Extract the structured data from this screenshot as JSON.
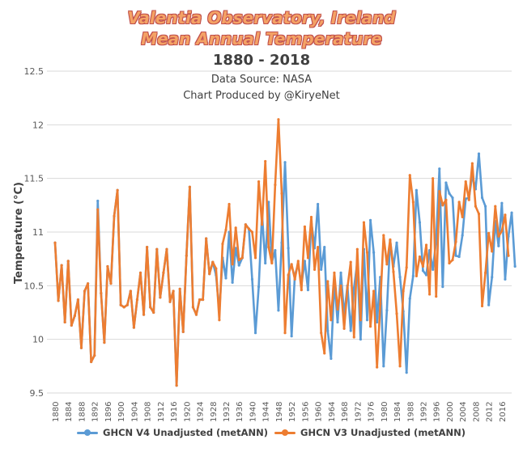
{
  "chart_data": {
    "type": "line",
    "title": [
      "Valentia Observatory, Ireland",
      "Mean Annual Temperature"
    ],
    "subtitle": "1880 - 2018",
    "source_lines": [
      "Data Source: NASA",
      "Chart Produced by @KiryeNet"
    ],
    "ylabel": "Temperature (°C)",
    "xlabel": "",
    "ylim": [
      9.5,
      12.5
    ],
    "yticks": [
      9.5,
      10,
      10.5,
      11,
      11.5,
      12,
      12.5
    ],
    "ytick_labels": [
      "9.5",
      "10",
      "10.5",
      "11",
      "11.5",
      "12",
      "12.5"
    ],
    "x_range": [
      1880,
      2018
    ],
    "xticks": [
      1880,
      1884,
      1888,
      1892,
      1896,
      1900,
      1904,
      1908,
      1912,
      1916,
      1920,
      1924,
      1928,
      1932,
      1936,
      1940,
      1944,
      1948,
      1952,
      1956,
      1960,
      1964,
      1968,
      1972,
      1976,
      1980,
      1984,
      1988,
      1992,
      1996,
      2000,
      2004,
      2008,
      2012,
      2016
    ],
    "grid": "horizontal",
    "legend_position": "bottom",
    "series": [
      {
        "name": "GHCN V4 Unadjusted (metANN)",
        "color": "#5b9bd5",
        "start_year": 1880,
        "values": [
          10.9,
          10.36,
          10.69,
          10.16,
          10.73,
          10.13,
          10.22,
          10.37,
          9.92,
          10.45,
          10.52,
          9.79,
          9.85,
          11.29,
          10.43,
          9.97,
          10.68,
          10.52,
          11.15,
          11.39,
          10.32,
          10.3,
          10.32,
          10.45,
          10.11,
          10.37,
          10.62,
          10.23,
          10.86,
          10.3,
          10.25,
          10.84,
          10.39,
          10.62,
          10.84,
          10.35,
          10.45,
          9.57,
          10.47,
          10.07,
          10.78,
          11.42,
          10.3,
          10.23,
          10.37,
          10.37,
          10.94,
          10.61,
          10.72,
          10.6,
          10.26,
          10.76,
          10.57,
          11.0,
          10.53,
          10.85,
          10.69,
          10.76,
          11.07,
          11.03,
          10.56,
          10.06,
          10.49,
          11.17,
          10.71,
          11.28,
          10.72,
          10.83,
          10.27,
          10.9,
          11.65,
          10.85,
          10.03,
          10.6,
          10.7,
          10.51,
          10.73,
          10.46,
          11.1,
          10.85,
          11.26,
          10.65,
          10.86,
          10.08,
          9.82,
          10.54,
          10.16,
          10.62,
          10.23,
          10.5,
          10.08,
          10.48,
          10.72,
          10.0,
          10.84,
          10.18,
          11.11,
          10.81,
          10.16,
          10.58,
          9.75,
          10.27,
          10.92,
          10.68,
          10.9,
          10.58,
          10.26,
          9.69,
          10.38,
          10.59,
          11.39,
          11.09,
          10.64,
          10.6,
          10.83,
          10.65,
          10.92,
          11.59,
          10.49,
          11.46,
          11.36,
          11.32,
          10.78,
          10.77,
          10.97,
          11.31,
          11.32,
          11.53,
          11.4,
          11.73,
          11.32,
          11.24,
          10.32,
          10.58,
          11.1,
          10.87,
          11.27,
          10.56,
          10.96,
          11.18,
          10.68
        ],
        "value_note": "approximate values read from chart"
      },
      {
        "name": "GHCN V3 Unadjusted (metANN)",
        "color": "#ed7d31",
        "start_year": 1880,
        "values": [
          10.9,
          10.36,
          10.69,
          10.16,
          10.73,
          10.13,
          10.22,
          10.37,
          9.92,
          10.45,
          10.52,
          9.79,
          9.85,
          11.21,
          10.43,
          9.97,
          10.68,
          10.52,
          11.15,
          11.39,
          10.32,
          10.3,
          10.32,
          10.45,
          10.11,
          10.37,
          10.62,
          10.23,
          10.86,
          10.3,
          10.25,
          10.84,
          10.39,
          10.62,
          10.84,
          10.35,
          10.45,
          9.57,
          10.47,
          10.07,
          10.78,
          11.42,
          10.3,
          10.23,
          10.37,
          10.37,
          10.94,
          10.61,
          10.72,
          10.66,
          10.18,
          10.89,
          11.02,
          11.26,
          10.7,
          11.04,
          10.74,
          10.76,
          11.07,
          11.03,
          11.0,
          10.76,
          11.47,
          11.07,
          11.66,
          10.86,
          10.71,
          11.44,
          12.05,
          11.36,
          10.06,
          10.6,
          10.7,
          10.56,
          10.73,
          10.46,
          11.05,
          10.76,
          11.14,
          10.65,
          10.86,
          10.06,
          9.87,
          10.54,
          10.18,
          10.62,
          10.28,
          10.5,
          10.1,
          10.48,
          10.72,
          10.02,
          10.84,
          10.18,
          11.09,
          10.81,
          10.12,
          10.45,
          9.74,
          10.33,
          10.97,
          10.7,
          10.93,
          10.63,
          10.24,
          9.75,
          10.45,
          10.67,
          11.53,
          11.28,
          10.59,
          10.77,
          10.68,
          10.88,
          10.42,
          11.5,
          10.4,
          11.38,
          11.25,
          11.3,
          10.71,
          10.74,
          10.91,
          11.28,
          11.14,
          11.47,
          11.3,
          11.64,
          11.24,
          11.17,
          10.31,
          10.62,
          10.99,
          10.82,
          11.24,
          10.96,
          11.01,
          11.16,
          10.78
        ],
        "value_note": "approximate values read from chart"
      }
    ]
  }
}
